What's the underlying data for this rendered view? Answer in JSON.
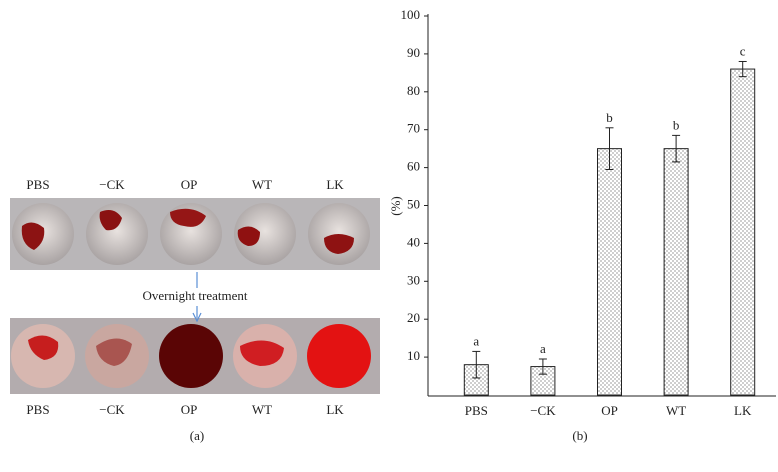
{
  "panel_a": {
    "top_labels": [
      "PBS",
      "−CK",
      "OP",
      "WT",
      "LK"
    ],
    "arrow_label": "Overnight treatment",
    "bottom_labels": [
      "PBS",
      "−CK",
      "OP",
      "WT",
      "LK"
    ],
    "caption": "(a)"
  },
  "chart_data": {
    "type": "bar",
    "caption": "(b)",
    "y_label": "(%)",
    "categories": [
      "PBS",
      "−CK",
      "OP",
      "WT",
      "LK"
    ],
    "values": [
      8,
      7.5,
      65,
      65,
      86
    ],
    "errors": [
      3.5,
      2,
      5.5,
      3.5,
      2
    ],
    "annotations": [
      "a",
      "a",
      "b",
      "b",
      "c"
    ],
    "ylim": [
      0,
      100
    ],
    "yticks": [
      10,
      20,
      30,
      40,
      50,
      60,
      70,
      80,
      90,
      100
    ],
    "color": "#ffffff"
  }
}
